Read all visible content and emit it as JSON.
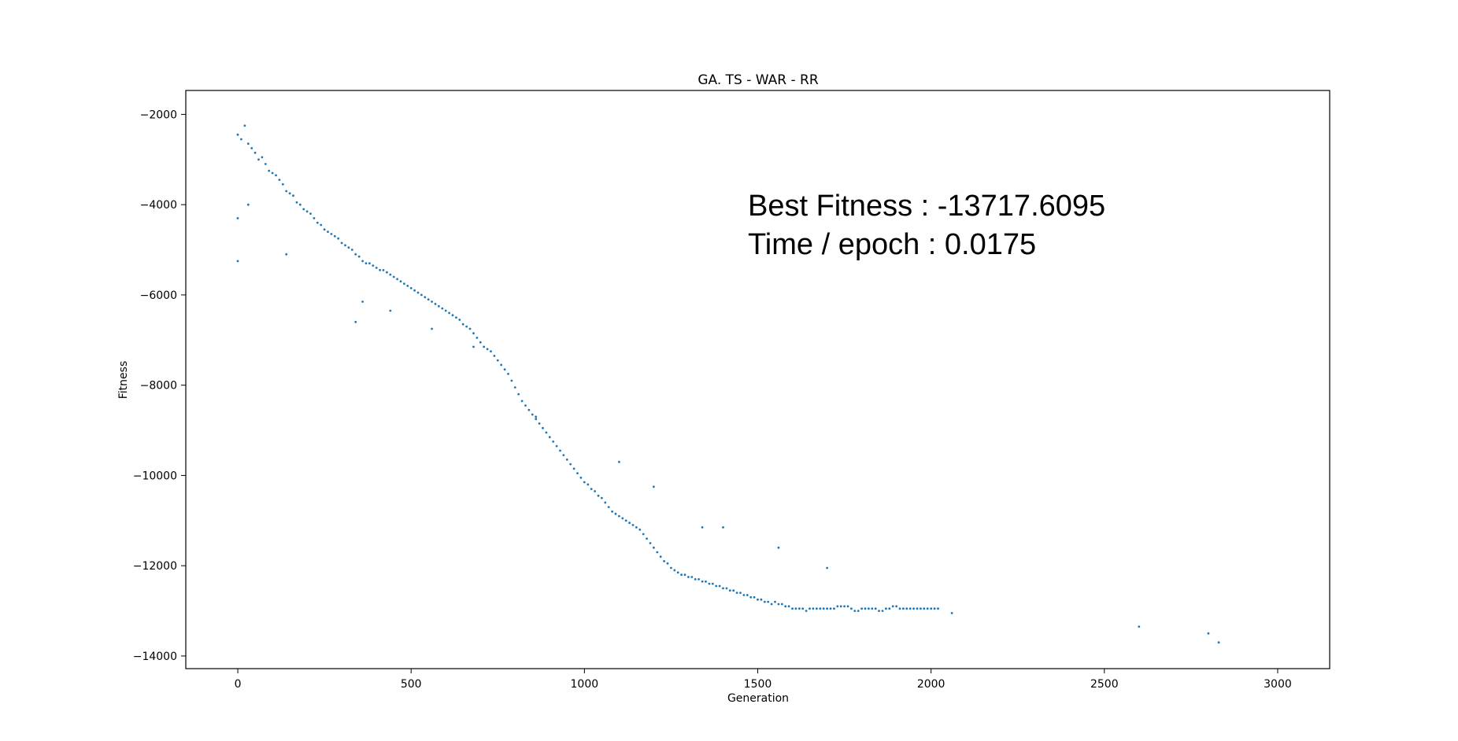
{
  "chart_data": {
    "type": "scatter",
    "title": "GA. TS - WAR - RR",
    "xlabel": "Generation",
    "ylabel": "Fitness",
    "xlim": [
      -150,
      3150
    ],
    "ylim": [
      -14280,
      -1470
    ],
    "xticks": [
      0,
      500,
      1000,
      1500,
      2000,
      2500,
      3000
    ],
    "xtick_labels": [
      "0",
      "500",
      "1000",
      "1500",
      "2000",
      "2500",
      "3000"
    ],
    "yticks": [
      -2000,
      -4000,
      -6000,
      -8000,
      -10000,
      -12000,
      -14000
    ],
    "ytick_labels": [
      "−2000",
      "−4000",
      "−6000",
      "−8000",
      "−10000",
      "−12000",
      "−14000"
    ],
    "grid": false,
    "legend": "none",
    "series": [
      {
        "color": "#1f77b4",
        "marker_size": 2,
        "x_start": 0,
        "x_step": 10,
        "y": [
          -2450,
          -2550,
          -2250,
          -2650,
          -2750,
          -2850,
          -3000,
          -2950,
          -3100,
          -3250,
          -3300,
          -3350,
          -3450,
          -3550,
          -3700,
          -3750,
          -3800,
          -3950,
          -4000,
          -4100,
          -4150,
          -4200,
          -4300,
          -4400,
          -4450,
          -4550,
          -4600,
          -4650,
          -4700,
          -4750,
          -4850,
          -4900,
          -4950,
          -5000,
          -5100,
          -5150,
          -5250,
          -5300,
          -5300,
          -5350,
          -5400,
          -5450,
          -5450,
          -5500,
          -5550,
          -5600,
          -5650,
          -5700,
          -5750,
          -5800,
          -5850,
          -5900,
          -5950,
          -6000,
          -6050,
          -6100,
          -6150,
          -6200,
          -6250,
          -6300,
          -6350,
          -6400,
          -6450,
          -6500,
          -6550,
          -6650,
          -6700,
          -6750,
          -6850,
          -6950,
          -7050,
          -7150,
          -7200,
          -7250,
          -7350,
          -7450,
          -7550,
          -7650,
          -7750,
          -7900,
          -8050,
          -8200,
          -8350,
          -8450,
          -8550,
          -8650,
          -8750,
          -8850,
          -8950,
          -9050,
          -9150,
          -9250,
          -9350,
          -9450,
          -9550,
          -9650,
          -9750,
          -9850,
          -9950,
          -10050,
          -10150,
          -10200,
          -10300,
          -10350,
          -10450,
          -10500,
          -10600,
          -10700,
          -10800,
          -10850,
          -10900,
          -10950,
          -11000,
          -11050,
          -11100,
          -11150,
          -11200,
          -11300,
          -11400,
          -11500,
          -11600,
          -11700,
          -11800,
          -11900,
          -11950,
          -12050,
          -12100,
          -12150,
          -12200,
          -12200,
          -12250,
          -12250,
          -12300,
          -12300,
          -12350,
          -12350,
          -12400,
          -12400,
          -12450,
          -12450,
          -12500,
          -12500,
          -12550,
          -12550,
          -12600,
          -12600,
          -12650,
          -12650,
          -12700,
          -12700,
          -12750,
          -12750,
          -12800,
          -12800,
          -12850,
          -12800,
          -12850,
          -12850,
          -12900,
          -12900,
          -12950,
          -12950,
          -12950,
          -12950,
          -13000,
          -12950,
          -12950,
          -12950,
          -12950,
          -12950,
          -12950,
          -12950,
          -12950,
          -12900,
          -12900,
          -12900,
          -12900,
          -12950,
          -13000,
          -13000,
          -12950,
          -12950,
          -12950,
          -12950,
          -12950,
          -13000,
          -13000,
          -12950,
          -12950,
          -12900,
          -12900,
          -12950,
          -12950,
          -12950,
          -12950,
          -12950,
          -12950,
          -12950,
          -12950,
          -12950,
          -12950,
          -12950,
          -12950
        ]
      },
      {
        "color": "#1f77b4",
        "marker_size": 2,
        "x": [
          0,
          0,
          30,
          140,
          340,
          360,
          440,
          560,
          680,
          860,
          1100,
          1200,
          1340,
          1400,
          1560,
          1700,
          2060,
          2600,
          2800,
          2830
        ],
        "y": [
          -4300,
          -5250,
          -4000,
          -5100,
          -6600,
          -6150,
          -6350,
          -6750,
          -7150,
          -8700,
          -9700,
          -10250,
          -11150,
          -11150,
          -11600,
          -12050,
          -13050,
          -13350,
          -13500,
          -13700
        ]
      }
    ],
    "annotations": [
      "Best Fitness : -13717.6095",
      "Time / epoch : 0.0175"
    ]
  }
}
